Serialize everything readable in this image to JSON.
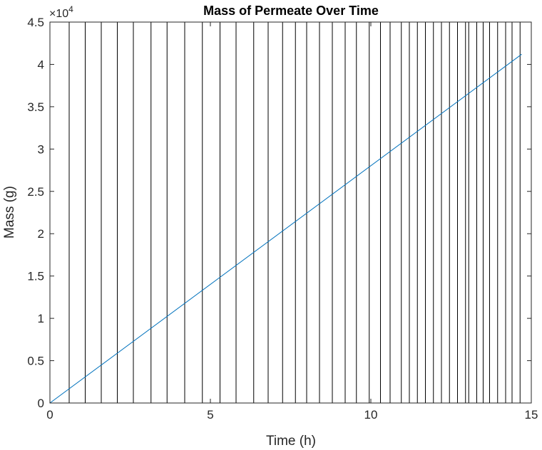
{
  "chart_data": {
    "type": "line",
    "title": "Mass of Permeate Over Time",
    "xlabel": "Time (h)",
    "ylabel": "Mass (g)",
    "xlim": [
      0,
      15
    ],
    "ylim": [
      0,
      45000
    ],
    "x_ticks": [
      0,
      5,
      10,
      15
    ],
    "y_ticks": [
      0,
      5000,
      10000,
      15000,
      20000,
      25000,
      30000,
      35000,
      40000,
      45000
    ],
    "y_tick_labels": [
      "0",
      "0.5",
      "1",
      "1.5",
      "2",
      "2.5",
      "3",
      "3.5",
      "4",
      "4.5"
    ],
    "y_exponent": {
      "base": "10",
      "power": "4"
    },
    "grid": false,
    "series": [
      {
        "x": [
          0,
          14.7
        ],
        "y": [
          0,
          41200
        ],
        "color": "#0072bd"
      }
    ],
    "vertical_lines": {
      "color": "#000000",
      "x": [
        0.6,
        1.1,
        1.6,
        2.1,
        2.6,
        3.15,
        3.65,
        4.2,
        4.75,
        5.3,
        5.8,
        6.35,
        6.8,
        7.25,
        7.65,
        8.0,
        8.4,
        8.8,
        9.2,
        9.55,
        9.95,
        10.3,
        10.6,
        10.95,
        11.2,
        11.45,
        11.7,
        11.95,
        12.2,
        12.45,
        12.7,
        12.95,
        13.05,
        13.3,
        13.5,
        13.7,
        13.95,
        14.2,
        14.4,
        14.65
      ]
    }
  }
}
